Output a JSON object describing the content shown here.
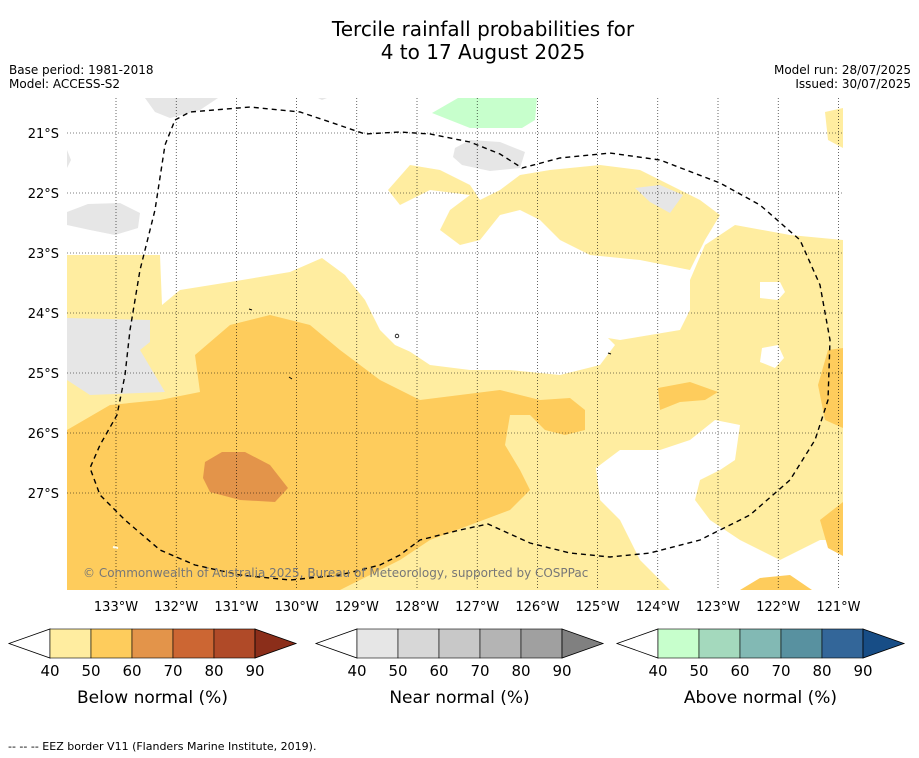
{
  "title_line1": "Tercile rainfall probabilities for",
  "title_line2": "4 to 17 August 2025",
  "base_period": "Base period: 1981-2018",
  "model": "Model: ACCESS-S2",
  "model_run": "Model run: 28/07/2025",
  "issued": "Issued: 30/07/2025",
  "lat_labels": [
    "21°S",
    "22°S",
    "23°S",
    "24°S",
    "25°S",
    "26°S",
    "27°S"
  ],
  "lon_labels": [
    "133°W",
    "132°W",
    "131°W",
    "130°W",
    "129°W",
    "128°W",
    "127°W",
    "126°W",
    "125°W",
    "124°W",
    "123°W",
    "122°W",
    "121°W"
  ],
  "copyright": "© Commonwealth of Australia 2025, Bureau of Meteorology, supported by COSPPac",
  "colorbars": [
    {
      "label": "Below normal (%)",
      "ticks": [
        "40",
        "50",
        "60",
        "70",
        "80",
        "90"
      ],
      "colors": [
        "#ffeda0",
        "#fecc5c",
        "#e3944a",
        "#cc6633",
        "#b04a28",
        "#8b2e1a"
      ]
    },
    {
      "label": "Near normal (%)",
      "ticks": [
        "40",
        "50",
        "60",
        "70",
        "80",
        "90"
      ],
      "colors": [
        "#e6e6e6",
        "#d7d7d7",
        "#c8c8c8",
        "#b4b4b4",
        "#a0a0a0",
        "#808080"
      ]
    },
    {
      "label": "Above normal (%)",
      "ticks": [
        "40",
        "50",
        "60",
        "70",
        "80",
        "90"
      ],
      "colors": [
        "#c7ffcc",
        "#a4d9bd",
        "#82b9b4",
        "#5891a0",
        "#336699",
        "#174d86"
      ]
    }
  ],
  "footer": "--  --  -- EEZ border V11 (Flanders Marine Institute, 2019)."
}
